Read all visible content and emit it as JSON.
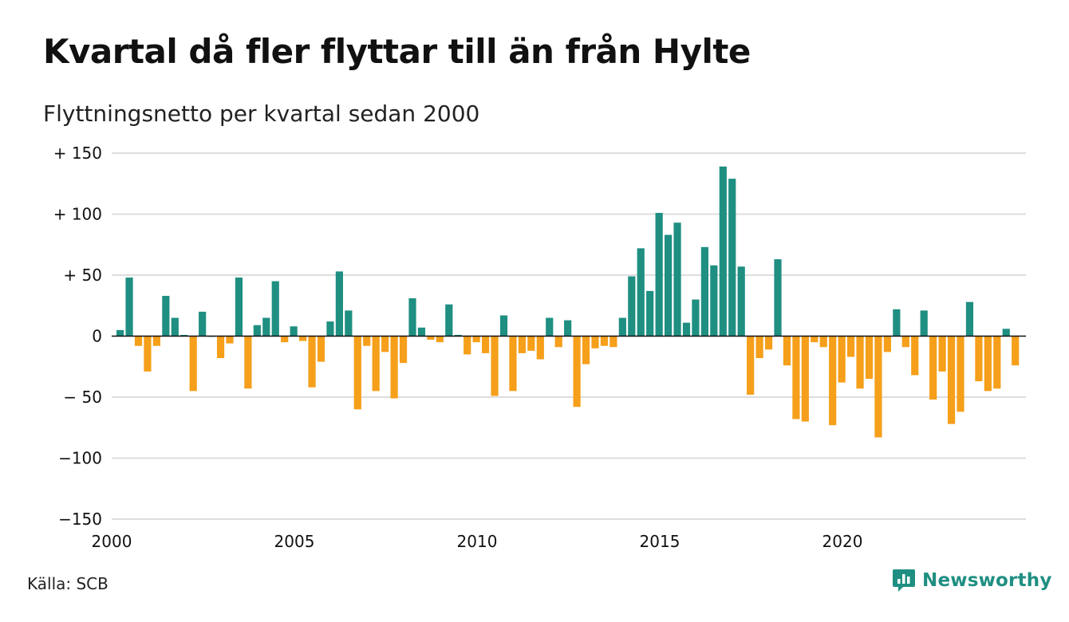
{
  "chart_data": {
    "type": "bar",
    "title": "Kvartal då fler flyttar till än från Hylte",
    "subtitle": "Flyttningsnetto per kvartal sedan 2000",
    "ylim": [
      -150,
      150
    ],
    "y_ticks": [
      150,
      100,
      50,
      0,
      -50,
      -100,
      -150
    ],
    "y_tick_labels": [
      "+ 150",
      "+ 100",
      "+  50",
      "0",
      "− 50",
      "−100",
      "−150"
    ],
    "x_tick_labels": [
      "2000",
      "2005",
      "2010",
      "2015",
      "2020"
    ],
    "x_tick_years": [
      2000,
      2005,
      2010,
      2015,
      2020
    ],
    "start_year": 2000,
    "grid": true,
    "legend": "none",
    "colors": {
      "positive": "#1f8f82",
      "negative": "#f59f1a",
      "grid": "#dddddd",
      "axis": "#111111"
    },
    "values": [
      5,
      48,
      -8,
      -29,
      -8,
      33,
      15,
      1,
      -45,
      20,
      0,
      -18,
      -6,
      48,
      -43,
      9,
      15,
      45,
      -5,
      8,
      -4,
      -42,
      -21,
      12,
      53,
      21,
      -60,
      -8,
      -45,
      -13,
      -51,
      -22,
      31,
      7,
      -3,
      -5,
      26,
      1,
      -15,
      -5,
      -14,
      -49,
      17,
      -45,
      -14,
      -12,
      -19,
      15,
      -9,
      13,
      -58,
      -23,
      -10,
      -8,
      -9,
      15,
      49,
      72,
      37,
      101,
      83,
      93,
      11,
      30,
      73,
      58,
      139,
      129,
      57,
      -48,
      -18,
      -11,
      63,
      -24,
      -68,
      -70,
      -5,
      -9,
      -73,
      -38,
      -17,
      -43,
      -35,
      -83,
      -13,
      22,
      -9,
      -32,
      21,
      -52,
      -29,
      -72,
      -62,
      28,
      -37,
      -45,
      -43,
      6,
      -24
    ]
  },
  "footer": {
    "source": "Källa: SCB",
    "brand": "Newsworthy"
  }
}
